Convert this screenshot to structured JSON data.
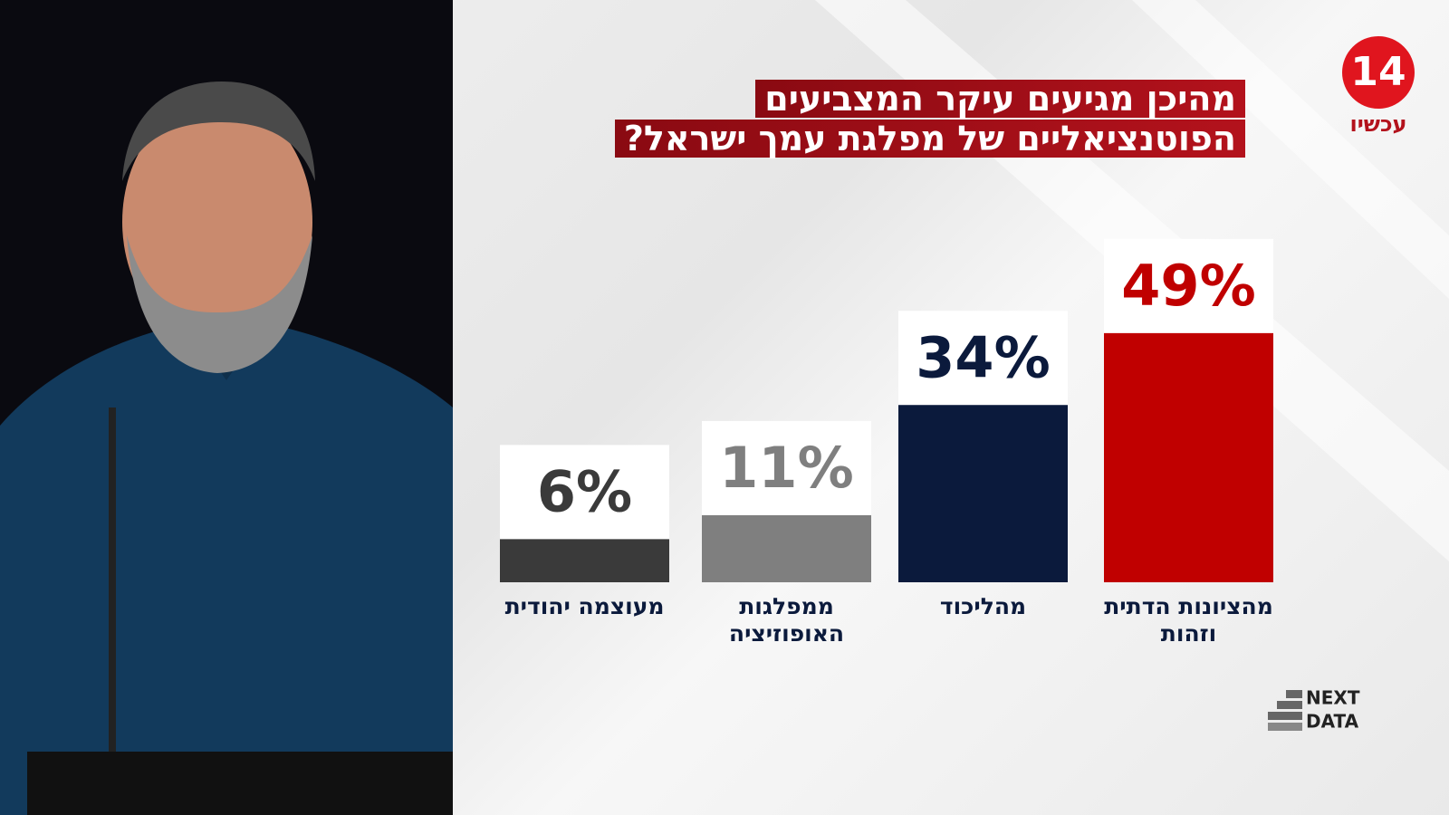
{
  "chart_data": {
    "type": "bar",
    "title": [
      "מהיכן מגיעים עיקר המצביעים",
      "הפוטנציאליים של מפלגת עמך ישראל?"
    ],
    "categories": [
      "מהציונות הדתית וזהות",
      "מהליכוד",
      "ממפלגות האופוזיציה",
      "מעוצמה יהודית"
    ],
    "values": [
      49,
      34,
      11,
      6
    ],
    "value_labels": [
      "49%",
      "34%",
      "11%",
      "6%"
    ],
    "colors": [
      "#c00000",
      "#0b1a3c",
      "#7f7f7f",
      "#3a3a3a"
    ],
    "ylim": [
      -3,
      52
    ]
  },
  "channel_logo": {
    "number": "14",
    "name": "עכשיו"
  },
  "source_logo": {
    "line1": "NEXT",
    "line2": "DATA"
  }
}
